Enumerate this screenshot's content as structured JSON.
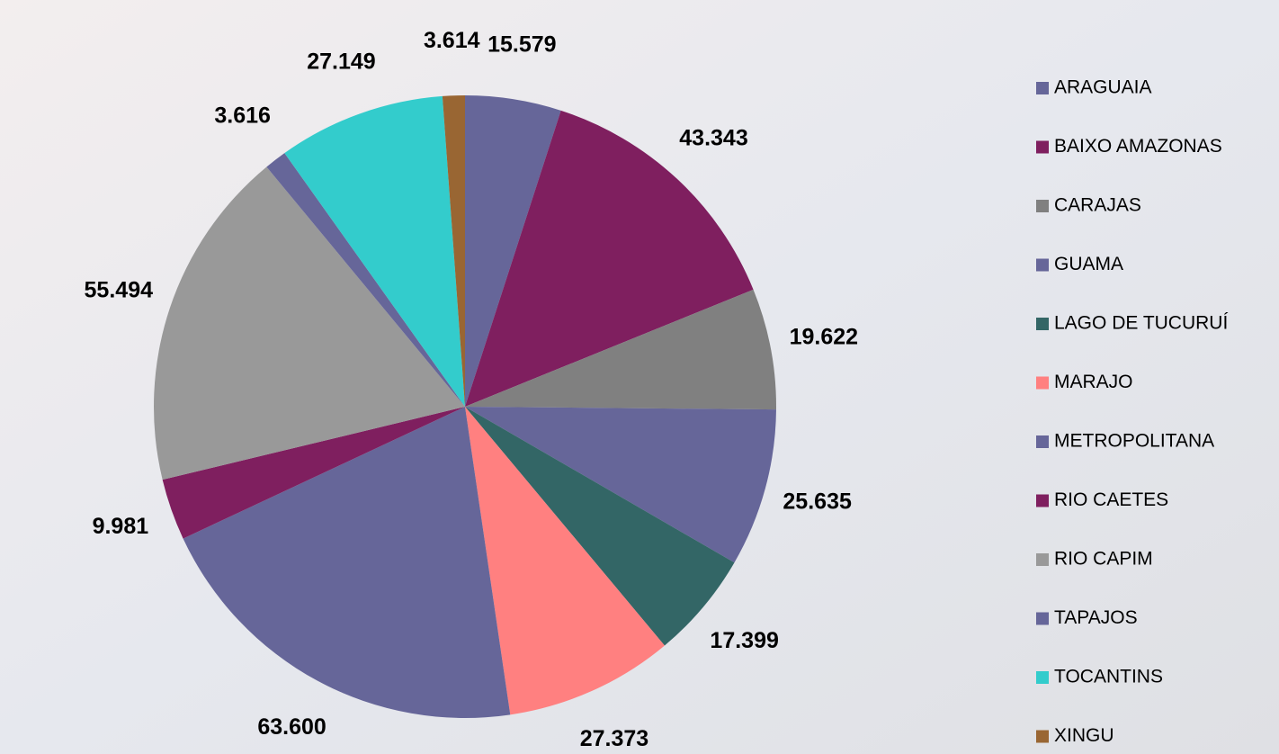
{
  "chart_data": {
    "type": "pie",
    "categories": [
      "ARAGUAIA",
      "BAIXO AMAZONAS",
      "CARAJAS",
      "GUAMA",
      "LAGO DE TUCURUÍ",
      "MARAJO",
      "METROPOLITANA",
      "RIO CAETES",
      "RIO CAPIM",
      "TAPAJOS",
      "TOCANTINS",
      "XINGU"
    ],
    "values": [
      15.579,
      43.343,
      19.622,
      25.635,
      17.399,
      27.373,
      63.6,
      9.981,
      55.494,
      3.616,
      27.149,
      3.614
    ],
    "value_labels": [
      "15.579",
      "43.343",
      "19.622",
      "25.635",
      "17.399",
      "27.373",
      "63.600",
      "9.981",
      "55.494",
      "3.616",
      "27.149",
      "3.614"
    ],
    "colors": [
      "#666699",
      "#7f1f5f",
      "#808080",
      "#666699",
      "#336666",
      "#ff8080",
      "#666699",
      "#7f1f5f",
      "#999999",
      "#666699",
      "#33cccc",
      "#996633"
    ],
    "legend": "right"
  }
}
